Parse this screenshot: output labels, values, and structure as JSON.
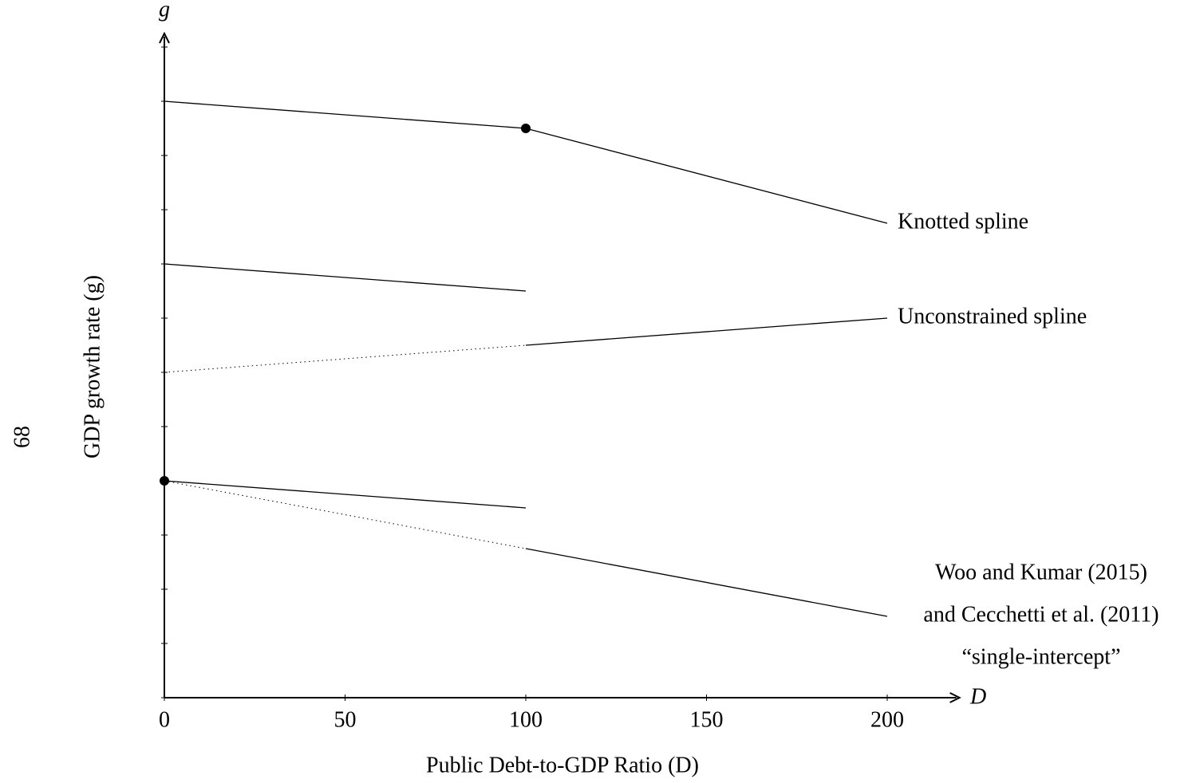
{
  "page_number": "68",
  "chart_data": {
    "type": "line",
    "xlabel": "Public Debt-to-GDP Ratio (D)",
    "ylabel": "GDP growth rate (g)",
    "x_axis_end_label": "D",
    "y_axis_end_label": "g",
    "xlim": [
      0,
      220
    ],
    "ylim": [
      0,
      12.25
    ],
    "xticks": [
      0,
      50,
      100,
      150,
      200
    ],
    "yticks": [
      0,
      1,
      2,
      3,
      4,
      5,
      6,
      7,
      8,
      9,
      10,
      11,
      12
    ],
    "color": "#000000",
    "series": [
      {
        "name": "Knotted spline",
        "x": [
          0,
          100,
          200
        ],
        "values": [
          11,
          10.5,
          8.75
        ],
        "markers": [
          false,
          true,
          false
        ]
      },
      {
        "x": [
          0,
          100
        ],
        "values": [
          8,
          7.5
        ]
      },
      {
        "name": "Unconstrained spline",
        "x": [
          100,
          200
        ],
        "values": [
          6.5,
          7
        ]
      },
      {
        "x": [
          0,
          100
        ],
        "values": [
          6,
          6.5
        ],
        "dash": "dotted"
      },
      {
        "x": [
          0,
          100
        ],
        "values": [
          4,
          3.5
        ],
        "markers": [
          true,
          false
        ]
      },
      {
        "x": [
          0,
          100
        ],
        "values": [
          4,
          2.75
        ],
        "dash": "dotted"
      },
      {
        "name": [
          "Woo and Kumar (2015)",
          "and Cecchetti et al. (2011)",
          "“single-intercept”"
        ],
        "x": [
          100,
          200
        ],
        "values": [
          2.75,
          1.5
        ]
      }
    ]
  }
}
